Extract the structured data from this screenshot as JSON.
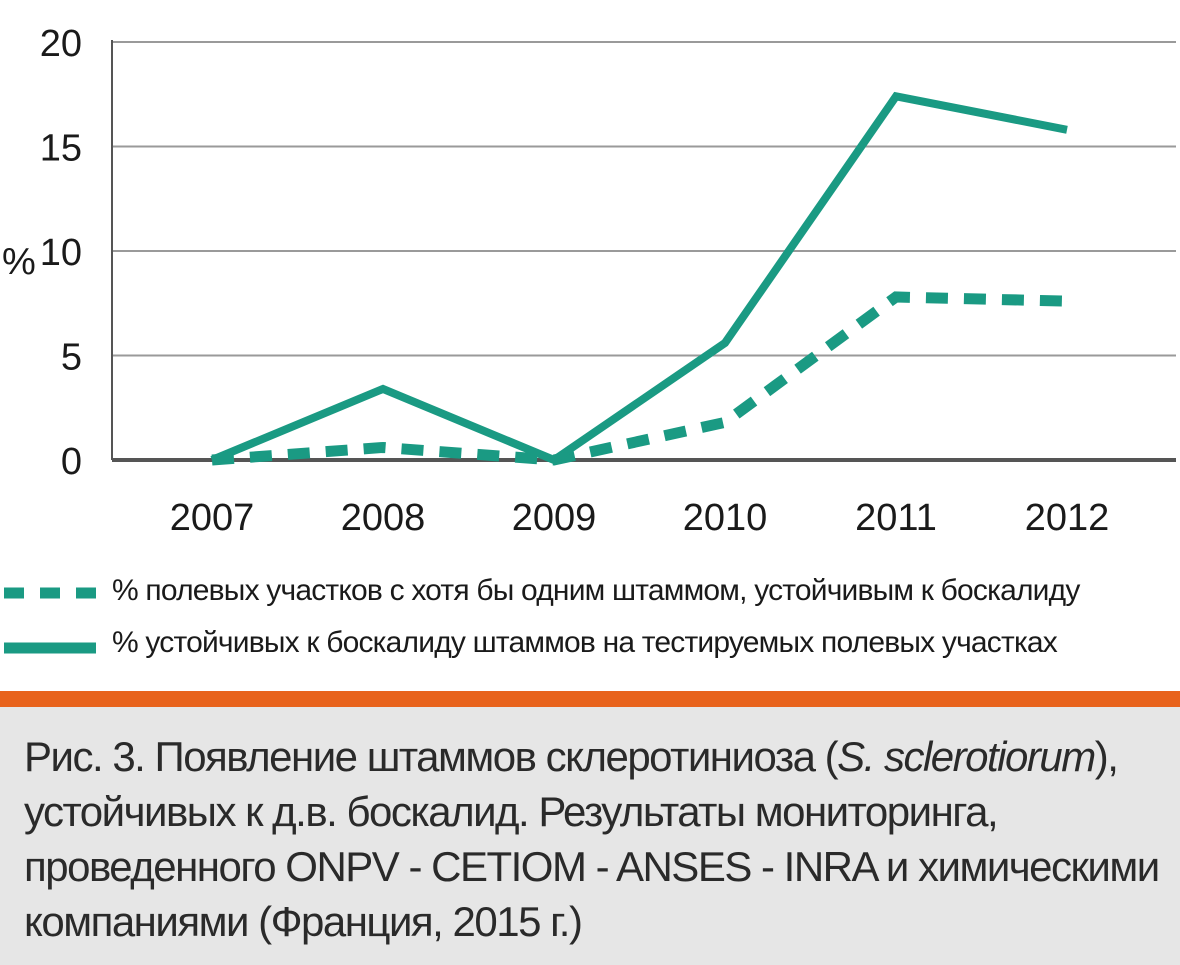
{
  "chart_data": {
    "type": "line",
    "title": "",
    "xlabel": "",
    "ylabel": "%",
    "categories": [
      "2007",
      "2008",
      "2009",
      "2010",
      "2011",
      "2012"
    ],
    "ylim": [
      0,
      20
    ],
    "yticks": [
      "0",
      "5",
      "10",
      "15",
      "20"
    ],
    "grid": true,
    "legend_position": "bottom",
    "series": [
      {
        "name": "% полевых участков с хотя бы одним штаммом, устойчивым к боскалиду",
        "style": "dashed",
        "color": "#1a9a83",
        "values": [
          0,
          0.6,
          0,
          1.8,
          7.8,
          7.6
        ]
      },
      {
        "name": "% устойчивых к боскалиду штаммов на тестируемых полевых участках",
        "style": "solid",
        "color": "#1a9a83",
        "values": [
          0,
          3.4,
          0,
          5.6,
          17.4,
          15.8
        ]
      }
    ]
  },
  "colors": {
    "series": "#1a9a83",
    "grid": "#9a9a9a",
    "axis": "#555555",
    "divider": "#e8631c",
    "caption_background": "#e6e6e6"
  },
  "caption": {
    "part1": "Рис. 3. Появление штаммов склеротиниоза (",
    "italic": "S. sclerotiorum",
    "part2": "), устойчивых к д.в. боскалид. Результаты мониторинга, проведенного ONPV - CETIOM - ANSES - INRA и химическими компаниями (Франция, 2015 г.)"
  }
}
